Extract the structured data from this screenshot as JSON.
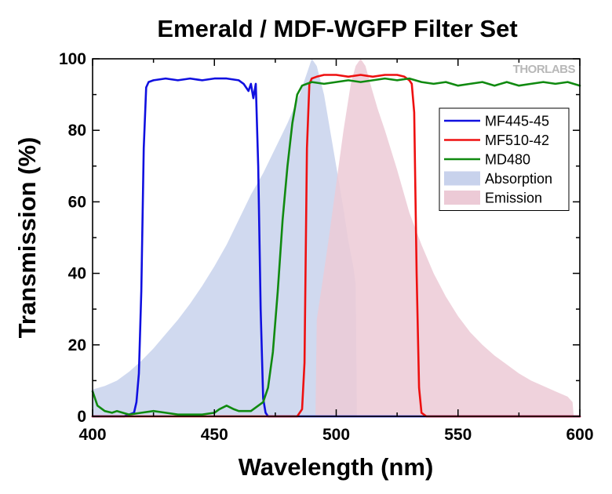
{
  "chart_data": {
    "type": "line",
    "title": "Emerald / MDF-WGFP Filter Set",
    "xlabel": "Wavelength (nm)",
    "ylabel": "Transmission (%)",
    "xlim": [
      400,
      600
    ],
    "ylim": [
      0,
      100
    ],
    "xticks": [
      "400",
      "450",
      "500",
      "550",
      "600"
    ],
    "yticks": [
      "0",
      "20",
      "40",
      "60",
      "80",
      "100"
    ],
    "grid": false,
    "legend_position": "top-right",
    "watermark": "THORLABS",
    "series": [
      {
        "name": "MF445-45",
        "kind": "line",
        "color": "#1010e0",
        "x": [
          400,
          413,
          417,
          418,
          419,
          420,
          421,
          422,
          423,
          425,
          430,
          435,
          440,
          445,
          450,
          455,
          460,
          462,
          464,
          465,
          466,
          467,
          468,
          469,
          470,
          471,
          472,
          475,
          500,
          550,
          600
        ],
        "y": [
          0,
          0,
          1,
          4,
          12,
          35,
          75,
          92,
          93.5,
          94,
          94.5,
          94,
          94.5,
          94,
          94.5,
          94.5,
          94,
          93,
          91,
          93,
          89,
          93,
          70,
          30,
          5,
          1,
          0,
          0,
          0,
          0,
          0
        ]
      },
      {
        "name": "MF510-42",
        "kind": "line",
        "color": "#ee1010",
        "x": [
          400,
          484,
          486,
          487,
          488,
          489,
          490,
          492,
          495,
          500,
          505,
          510,
          515,
          520,
          525,
          528,
          530,
          531,
          532,
          533,
          534,
          535,
          537,
          560,
          600
        ],
        "y": [
          0,
          0,
          2,
          15,
          75,
          93,
          94.5,
          95,
          95.5,
          95.5,
          95,
          95.5,
          95,
          95.5,
          95.5,
          95,
          94,
          93,
          85,
          40,
          8,
          1,
          0,
          0,
          0
        ]
      },
      {
        "name": "MD480",
        "kind": "line",
        "color": "#108a10",
        "x": [
          400,
          401,
          402,
          405,
          408,
          410,
          415,
          420,
          425,
          430,
          435,
          440,
          445,
          450,
          452,
          455,
          458,
          460,
          465,
          470,
          472,
          474,
          476,
          478,
          480,
          482,
          484,
          486,
          488,
          490,
          495,
          500,
          505,
          510,
          515,
          520,
          525,
          530,
          535,
          540,
          545,
          550,
          555,
          560,
          565,
          570,
          575,
          580,
          585,
          590,
          595,
          600
        ],
        "y": [
          7,
          5,
          3,
          1.5,
          1,
          1.5,
          0.5,
          1,
          1.5,
          1,
          0.5,
          0.5,
          0.5,
          1,
          2,
          3,
          2,
          1.5,
          1.5,
          4,
          8,
          18,
          35,
          55,
          70,
          82,
          90,
          92.5,
          93,
          93.5,
          93,
          93.5,
          94,
          93.5,
          94,
          94.5,
          94,
          94.5,
          93.5,
          93,
          93.5,
          92.5,
          93,
          93.5,
          92.5,
          93.5,
          92.5,
          93,
          93.5,
          93,
          93.5,
          92.5
        ]
      },
      {
        "name": "Absorption",
        "kind": "area",
        "color": "#c8d2ec",
        "x": [
          400,
          405,
          410,
          415,
          420,
          425,
          430,
          435,
          440,
          445,
          450,
          455,
          460,
          465,
          470,
          475,
          480,
          485,
          488,
          490,
          492,
          495,
          497,
          500,
          503,
          505,
          507,
          508,
          508.5
        ],
        "y": [
          7.5,
          8.5,
          10,
          12.5,
          15.5,
          19,
          23,
          27,
          31.5,
          36.5,
          42,
          48,
          55,
          62,
          68,
          75,
          82,
          90,
          96,
          100,
          98,
          90,
          82,
          70,
          58,
          49,
          42,
          37,
          0
        ]
      },
      {
        "name": "Emission",
        "kind": "area",
        "color": "#eccad6",
        "x": [
          491.5,
          492,
          494,
          497,
          500,
          503,
          506,
          508,
          510,
          512,
          514,
          517,
          520,
          525,
          530,
          535,
          540,
          545,
          550,
          555,
          560,
          565,
          570,
          575,
          580,
          585,
          590,
          595,
          597,
          597.5
        ],
        "y": [
          0,
          27,
          36,
          50,
          65,
          80,
          93,
          98,
          100,
          98,
          93,
          86,
          80,
          69,
          57,
          48,
          40,
          33.5,
          28,
          23.5,
          20,
          17,
          14.5,
          12,
          10,
          8.5,
          7,
          5.5,
          4,
          0
        ]
      }
    ]
  }
}
